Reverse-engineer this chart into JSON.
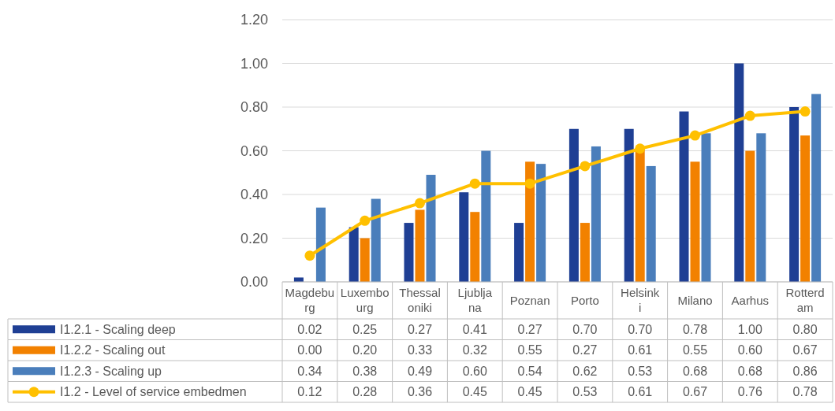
{
  "chart_data": {
    "type": "bar",
    "categories": [
      "Magdeburg",
      "Luxembourg",
      "Thessaloniki",
      "Ljubljana",
      "Poznan",
      "Porto",
      "Helsinki",
      "Milano",
      "Aarhus",
      "Rotterdam"
    ],
    "series": [
      {
        "name": "I1.2.1 - Scaling deep",
        "color": "#1f3f94",
        "values": [
          0.02,
          0.25,
          0.27,
          0.41,
          0.27,
          0.7,
          0.7,
          0.78,
          1.0,
          0.8
        ],
        "value_labels": [
          "0.02",
          "0.25",
          "0.27",
          "0.41",
          "0.27",
          "0.70",
          "0.70",
          "0.78",
          "1.00",
          "0.80"
        ]
      },
      {
        "name": "I1.2.2 - Scaling out",
        "color": "#f28100",
        "values": [
          0.0,
          0.2,
          0.33,
          0.32,
          0.55,
          0.27,
          0.61,
          0.55,
          0.6,
          0.67
        ],
        "value_labels": [
          "0.00",
          "0.20",
          "0.33",
          "0.32",
          "0.55",
          "0.27",
          "0.61",
          "0.55",
          "0.60",
          "0.67"
        ]
      },
      {
        "name": "I1.2.3 - Scaling up",
        "color": "#4a7ebb",
        "values": [
          0.34,
          0.38,
          0.49,
          0.6,
          0.54,
          0.62,
          0.53,
          0.68,
          0.68,
          0.86
        ],
        "value_labels": [
          "0.34",
          "0.38",
          "0.49",
          "0.60",
          "0.54",
          "0.62",
          "0.53",
          "0.68",
          "0.68",
          "0.86"
        ]
      },
      {
        "name": "I1.2 - Level of service embedmen",
        "color": "#ffc000",
        "type": "line",
        "values": [
          0.12,
          0.28,
          0.36,
          0.45,
          0.45,
          0.53,
          0.61,
          0.67,
          0.76,
          0.78
        ],
        "value_labels": [
          "0.12",
          "0.28",
          "0.36",
          "0.45",
          "0.45",
          "0.53",
          "0.61",
          "0.67",
          "0.76",
          "0.78"
        ]
      }
    ],
    "ylim": [
      0,
      1.2
    ],
    "yticks": [
      {
        "value": 0,
        "label": "0.00"
      },
      {
        "value": 0.2,
        "label": "0.20"
      },
      {
        "value": 0.4,
        "label": "0.40"
      },
      {
        "value": 0.6,
        "label": "0.60"
      },
      {
        "value": 0.8,
        "label": "0.80"
      },
      {
        "value": 1,
        "label": "1.00"
      },
      {
        "value": 1.2,
        "label": "1.20"
      }
    ],
    "grid": "y",
    "legend": "bottom",
    "marker": "circle"
  }
}
